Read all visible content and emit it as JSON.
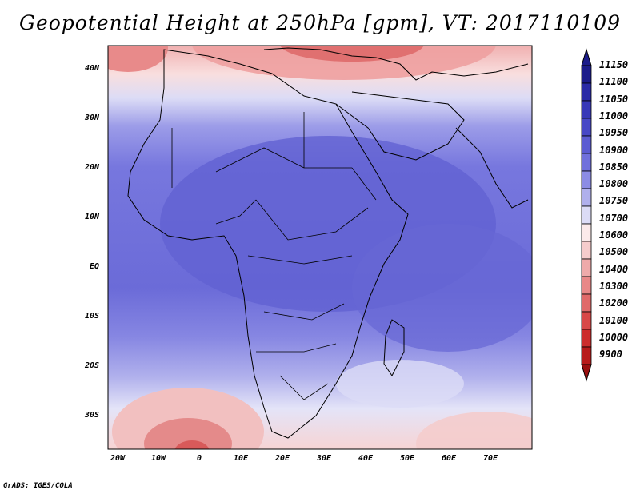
{
  "title": "Geopotential Height at 250hPa [gpm], VT: 2017110109",
  "lat_labels": [
    "40N",
    "30N",
    "20N",
    "10N",
    "EQ",
    "10S",
    "20S",
    "30S"
  ],
  "lon_labels": [
    "20W",
    "10W",
    "0",
    "10E",
    "20E",
    "30E",
    "40E",
    "50E",
    "60E",
    "70E"
  ],
  "colorbar": {
    "levels": [
      "11150",
      "11100",
      "11050",
      "11000",
      "10950",
      "10900",
      "10850",
      "10800",
      "10750",
      "10700",
      "10600",
      "10500",
      "10400",
      "10300",
      "10200",
      "10100",
      "10000",
      "9900"
    ],
    "colors": [
      "#1b1b8a",
      "#2a2aa6",
      "#3838b8",
      "#4848c6",
      "#5c5cd2",
      "#7070dc",
      "#8c8ce4",
      "#b0b0ec",
      "#dcdcf6",
      "#fbeaea",
      "#f6cccc",
      "#eeaaaa",
      "#e88888",
      "#e06a6a",
      "#d84848",
      "#cc2c2c",
      "#b81a1a",
      "#9a0f0f"
    ]
  },
  "credit": "GrADS: IGES/COLA"
}
